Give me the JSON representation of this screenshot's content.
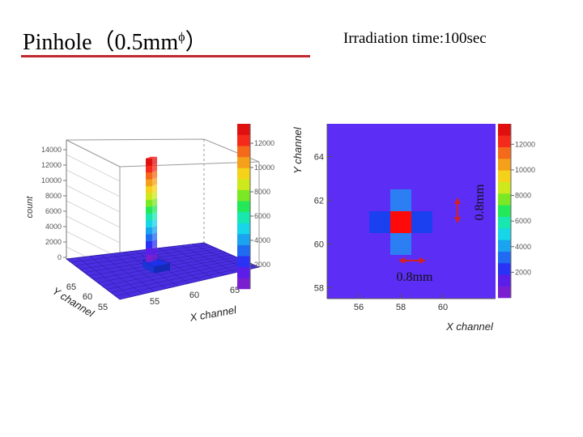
{
  "header": {
    "title_main": "Pinhole（0.5mm",
    "title_sym": "ϕ",
    "title_close": "）",
    "subtitle": "Irradiation time:100sec"
  },
  "colors": {
    "title_rule": "#c0282d",
    "background_cell": "#5c2df5",
    "hot_cell": "#ff0a0a",
    "mid_cell": "#1a40f0",
    "neighbor_cell": "#2b7ff2"
  },
  "chart_data": [
    {
      "type": "lego3d",
      "ylabel": "count",
      "xlabel": "X channel",
      "zlabel": "Y channel",
      "z_ticks": [
        "0",
        "2000",
        "4000",
        "6000",
        "8000",
        "10000",
        "12000",
        "14000"
      ],
      "x_ticks": [
        "55",
        "60",
        "65"
      ],
      "y_ticks": [
        "55",
        "60",
        "65"
      ],
      "colorbar_ticks": [
        "2000",
        "4000",
        "6000",
        "8000",
        "10000",
        "12000"
      ],
      "peak": {
        "x": 58,
        "y": 61,
        "count": 13500
      },
      "neighbor": {
        "count": 900
      }
    },
    {
      "type": "heatmap",
      "xlabel": "X channel",
      "ylabel": "Y channel",
      "x_ticks": [
        "56",
        "58",
        "60"
      ],
      "y_ticks": [
        "58",
        "60",
        "62",
        "64"
      ],
      "xlim": [
        54.5,
        62.5
      ],
      "ylim": [
        57.5,
        65.5
      ],
      "colorbar_ticks": [
        "2000",
        "4000",
        "6000",
        "8000",
        "10000",
        "12000"
      ],
      "cells": [
        {
          "x": 58,
          "y": 61,
          "level": "hot"
        },
        {
          "x": 57,
          "y": 61,
          "level": "mid"
        },
        {
          "x": 59,
          "y": 61,
          "level": "mid"
        },
        {
          "x": 58,
          "y": 62,
          "level": "neighbor"
        },
        {
          "x": 58,
          "y": 60,
          "level": "neighbor"
        }
      ],
      "annotations": {
        "horizontal": "0.8mm",
        "vertical": "0.8mm"
      }
    }
  ]
}
